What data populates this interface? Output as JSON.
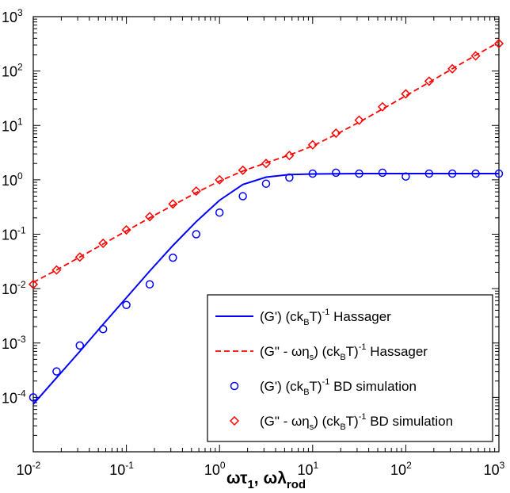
{
  "chart_data": {
    "type": "line",
    "title": "",
    "xlabel": "ωτ₁, ωλrod",
    "xlabel_parts": {
      "a": "ωτ",
      "a_sub": "1",
      "sep": ", ωλ",
      "b_sub": "rod"
    },
    "ylabel": "",
    "xscale": "log",
    "yscale": "log",
    "xlim": [
      0.01,
      1000
    ],
    "ylim": [
      1e-05,
      1000
    ],
    "x_tick_exponents": [
      "-2",
      "-1",
      "0",
      "1",
      "2",
      "3"
    ],
    "y_tick_exponents": [
      "-4",
      "-3",
      "-2",
      "-1",
      "0",
      "1",
      "2",
      "3"
    ],
    "tick_base": "10",
    "grid": false,
    "legend_position": "bottom-right",
    "colors": {
      "blue": "#0000ff",
      "red": "#ff0000"
    },
    "series": [
      {
        "key": "g1_hassager",
        "style": "solid-line",
        "color": "#0000ff",
        "legend": {
          "pre": "(G') (ck",
          "sub": "B",
          "mid": "T)",
          "sup": "-1",
          "post": " Hassager"
        },
        "x": [
          0.01,
          0.0178,
          0.0316,
          0.0562,
          0.1,
          0.178,
          0.316,
          0.562,
          1.0,
          1.78,
          3.16,
          5.62,
          10,
          17.8,
          31.6,
          56.2,
          100,
          178,
          316,
          562,
          1000
        ],
        "y": [
          7.5e-05,
          0.00023,
          0.0007,
          0.0022,
          0.0068,
          0.021,
          0.062,
          0.17,
          0.42,
          0.82,
          1.12,
          1.25,
          1.28,
          1.29,
          1.3,
          1.3,
          1.3,
          1.3,
          1.3,
          1.3,
          1.3
        ]
      },
      {
        "key": "g2_hassager",
        "style": "dashed-line",
        "color": "#ff0000",
        "legend": {
          "pre": "(G\" - ωη",
          "sub": "s",
          "mid": ") (ck",
          "sub2": "B",
          "mid2": "T)",
          "sup": "-1",
          "post": " Hassager"
        },
        "x": [
          0.01,
          0.0178,
          0.0316,
          0.0562,
          0.1,
          0.178,
          0.316,
          0.562,
          1.0,
          1.78,
          3.16,
          5.62,
          10,
          17.8,
          31.6,
          56.2,
          100,
          178,
          316,
          562,
          1000
        ],
        "y": [
          0.013,
          0.022,
          0.038,
          0.066,
          0.115,
          0.2,
          0.34,
          0.58,
          0.95,
          1.45,
          2.05,
          2.85,
          4.2,
          6.8,
          11.5,
          20,
          35,
          62,
          110,
          195,
          340
        ]
      },
      {
        "key": "g1_bd",
        "style": "circle-marker",
        "color": "#0000ff",
        "legend": {
          "pre": "(G') (ck",
          "sub": "B",
          "mid": "T)",
          "sup": "-1",
          "post": " BD simulation"
        },
        "x": [
          0.01,
          0.0178,
          0.0316,
          0.0562,
          0.1,
          0.178,
          0.316,
          0.562,
          1.0,
          1.78,
          3.16,
          5.62,
          10,
          17.8,
          31.6,
          56.2,
          100,
          178,
          316,
          562,
          1000
        ],
        "y": [
          0.0001,
          0.0003,
          0.0009,
          0.0018,
          0.005,
          0.012,
          0.037,
          0.1,
          0.25,
          0.5,
          0.85,
          1.1,
          1.3,
          1.35,
          1.3,
          1.35,
          1.15,
          1.3,
          1.3,
          1.3,
          1.3
        ]
      },
      {
        "key": "g2_bd",
        "style": "diamond-marker",
        "color": "#ff0000",
        "legend": {
          "pre": "(G\" - ωη",
          "sub": "s",
          "mid": ") (ck",
          "sub2": "B",
          "mid2": "T)",
          "sup": "-1",
          "post": " BD simulation"
        },
        "x": [
          0.01,
          0.0178,
          0.0316,
          0.0562,
          0.1,
          0.178,
          0.316,
          0.562,
          1.0,
          1.78,
          3.16,
          5.62,
          10,
          17.8,
          31.6,
          56.2,
          100,
          178,
          316,
          562,
          1000
        ],
        "y": [
          0.012,
          0.022,
          0.038,
          0.068,
          0.12,
          0.21,
          0.36,
          0.62,
          1.0,
          1.5,
          2.0,
          2.8,
          4.4,
          7.2,
          12.5,
          22,
          38,
          65,
          110,
          190,
          320
        ]
      }
    ]
  }
}
